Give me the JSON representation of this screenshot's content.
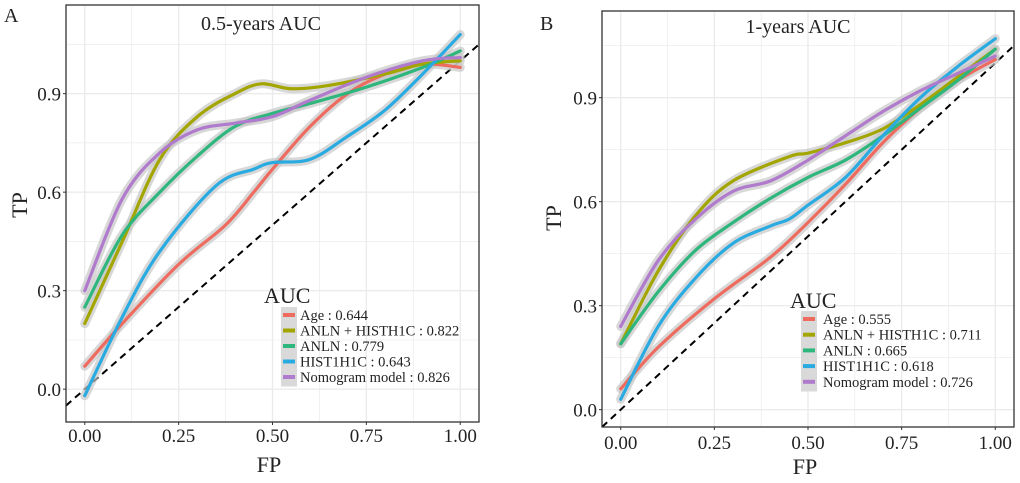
{
  "chart_data": [
    {
      "type": "line",
      "panel_label": "A",
      "title": "0.5-years AUC",
      "xlabel": "FP",
      "ylabel": "TP",
      "xlim": [
        -0.05,
        1.05
      ],
      "ylim": [
        -0.1,
        1.17
      ],
      "xticks": [
        "0.00",
        "0.25",
        "0.50",
        "0.75",
        "1.00"
      ],
      "yticks": [
        "0.0",
        "0.3",
        "0.6",
        "0.9"
      ],
      "grid": true,
      "legend_title": "AUC",
      "legend_placement": "bottom-right",
      "reference_line": "diagonal dashed",
      "series": [
        {
          "name": "Age  : 0.644",
          "color": "#EE6B5F",
          "x": [
            0,
            0.1,
            0.25,
            0.375,
            0.45,
            0.5,
            0.6,
            0.7,
            0.8,
            0.9,
            1
          ],
          "y": [
            0.07,
            0.2,
            0.38,
            0.5,
            0.6,
            0.67,
            0.8,
            0.9,
            0.96,
            0.99,
            0.98
          ]
        },
        {
          "name": "ANLN + HISTH1C : 0.822",
          "color": "#A3A500",
          "x": [
            0,
            0.1,
            0.2,
            0.3,
            0.4,
            0.47,
            0.55,
            0.65,
            0.8,
            0.9,
            1
          ],
          "y": [
            0.2,
            0.45,
            0.7,
            0.83,
            0.9,
            0.93,
            0.915,
            0.925,
            0.96,
            0.99,
            1.0
          ]
        },
        {
          "name": "ANLN : 0.779",
          "color": "#2EB67D",
          "x": [
            0,
            0.1,
            0.2,
            0.3,
            0.4,
            0.5,
            0.6,
            0.75,
            0.9,
            1
          ],
          "y": [
            0.25,
            0.47,
            0.6,
            0.71,
            0.8,
            0.84,
            0.87,
            0.92,
            0.98,
            1.03
          ]
        },
        {
          "name": "HIST1H1C : 0.643",
          "color": "#29ABE2",
          "x": [
            0,
            0.1,
            0.2,
            0.35,
            0.45,
            0.5,
            0.6,
            0.7,
            0.8,
            0.9,
            1
          ],
          "y": [
            -0.02,
            0.22,
            0.42,
            0.62,
            0.67,
            0.69,
            0.7,
            0.77,
            0.85,
            0.96,
            1.08
          ]
        },
        {
          "name": "Nomogram model : 0.826",
          "color": "#B07ACD",
          "x": [
            0,
            0.1,
            0.2,
            0.3,
            0.4,
            0.5,
            0.6,
            0.75,
            0.9,
            1
          ],
          "y": [
            0.3,
            0.58,
            0.72,
            0.79,
            0.81,
            0.83,
            0.88,
            0.95,
            1.0,
            1.01
          ]
        }
      ]
    },
    {
      "type": "line",
      "panel_label": "B",
      "title": "1-years AUC",
      "xlabel": "FP",
      "ylabel": "TP",
      "xlim": [
        -0.05,
        1.05
      ],
      "ylim": [
        -0.05,
        1.15
      ],
      "xticks": [
        "0.00",
        "0.25",
        "0.50",
        "0.75",
        "1.00"
      ],
      "yticks": [
        "0.0",
        "0.3",
        "0.6",
        "0.9"
      ],
      "grid": true,
      "legend_title": "AUC",
      "legend_placement": "bottom-right",
      "reference_line": "diagonal dashed",
      "series": [
        {
          "name": "Age  : 0.555",
          "color": "#EE6B5F",
          "x": [
            0,
            0.1,
            0.25,
            0.4,
            0.5,
            0.6,
            0.7,
            0.8,
            0.9,
            1
          ],
          "y": [
            0.06,
            0.18,
            0.32,
            0.44,
            0.54,
            0.65,
            0.77,
            0.87,
            0.95,
            1.01
          ]
        },
        {
          "name": "ANLN + HISTH1C : 0.711",
          "color": "#A3A500",
          "x": [
            0,
            0.1,
            0.2,
            0.3,
            0.45,
            0.5,
            0.6,
            0.7,
            0.8,
            0.9,
            1
          ],
          "y": [
            0.19,
            0.4,
            0.56,
            0.66,
            0.73,
            0.74,
            0.77,
            0.81,
            0.88,
            0.96,
            1.04
          ]
        },
        {
          "name": "ANLN : 0.665",
          "color": "#2EB67D",
          "x": [
            0,
            0.1,
            0.2,
            0.3,
            0.4,
            0.5,
            0.6,
            0.7,
            0.8,
            0.9,
            1
          ],
          "y": [
            0.19,
            0.34,
            0.46,
            0.54,
            0.61,
            0.67,
            0.72,
            0.79,
            0.87,
            0.95,
            1.04
          ]
        },
        {
          "name": "HIST1H1C : 0.618",
          "color": "#29ABE2",
          "x": [
            0,
            0.1,
            0.2,
            0.3,
            0.4,
            0.45,
            0.5,
            0.6,
            0.7,
            0.8,
            0.9,
            1
          ],
          "y": [
            0.03,
            0.24,
            0.38,
            0.48,
            0.53,
            0.55,
            0.59,
            0.67,
            0.79,
            0.9,
            0.99,
            1.07
          ]
        },
        {
          "name": "Nomogram model : 0.726",
          "color": "#B07ACD",
          "x": [
            0,
            0.1,
            0.2,
            0.3,
            0.4,
            0.5,
            0.6,
            0.7,
            0.8,
            0.9,
            1
          ],
          "y": [
            0.24,
            0.43,
            0.55,
            0.63,
            0.66,
            0.72,
            0.79,
            0.86,
            0.92,
            0.97,
            1.02
          ]
        }
      ]
    }
  ]
}
